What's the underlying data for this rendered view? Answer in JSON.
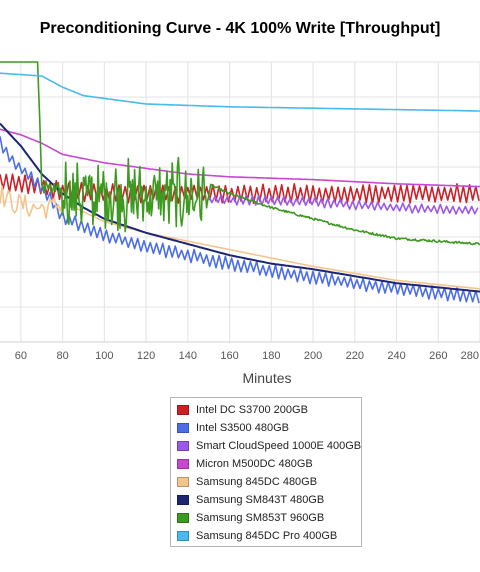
{
  "chart_data": {
    "type": "line",
    "title": "Preconditioning Curve - 4K 100% Write [Throughput]",
    "xlabel": "Minutes",
    "ylabel": "",
    "xlim": [
      50,
      280
    ],
    "x_ticks": [
      60,
      80,
      100,
      120,
      140,
      160,
      180,
      200,
      220,
      240,
      260,
      280
    ],
    "ylim": [
      0,
      100
    ],
    "grid": true,
    "legend_position": "bottom",
    "series": [
      {
        "name": "Intel DC S3700 200GB",
        "color": "#cc2027",
        "style": "noisy",
        "noise": 3.5,
        "points": [
          [
            50,
            57
          ],
          [
            60,
            57
          ],
          [
            65,
            56
          ],
          [
            70,
            55
          ],
          [
            80,
            54
          ],
          [
            100,
            53
          ],
          [
            150,
            53
          ],
          [
            280,
            53
          ]
        ]
      },
      {
        "name": "Intel S3500 480GB",
        "color": "#4b6ee8",
        "style": "noisy",
        "noise": 2.5,
        "points": [
          [
            50,
            72
          ],
          [
            55,
            65
          ],
          [
            60,
            62
          ],
          [
            70,
            55
          ],
          [
            80,
            45
          ],
          [
            100,
            38
          ],
          [
            120,
            34
          ],
          [
            140,
            31
          ],
          [
            160,
            28
          ],
          [
            200,
            23
          ],
          [
            240,
            19
          ],
          [
            280,
            16
          ]
        ]
      },
      {
        "name": "Smart CloudSpeed 1000E 400GB",
        "color": "#9b59e8",
        "style": "noisy",
        "noise": 1.8,
        "points": [
          [
            150,
            51
          ],
          [
            200,
            50
          ],
          [
            240,
            48
          ],
          [
            280,
            47
          ]
        ]
      },
      {
        "name": "Micron M500DC 480GB",
        "color": "#c847d1",
        "style": "smooth",
        "noise": 0,
        "points": [
          [
            50,
            76
          ],
          [
            60,
            74
          ],
          [
            70,
            71
          ],
          [
            80,
            67
          ],
          [
            100,
            64
          ],
          [
            120,
            62
          ],
          [
            140,
            60
          ],
          [
            160,
            59
          ],
          [
            200,
            58
          ],
          [
            240,
            56.5
          ],
          [
            280,
            55.5
          ]
        ]
      },
      {
        "name": "Samsung 845DC 480GB",
        "color": "#f4c48d",
        "style": "noisy-start",
        "noise": 4,
        "points": [
          [
            50,
            53
          ],
          [
            55,
            50
          ],
          [
            60,
            49
          ],
          [
            65,
            48
          ],
          [
            70,
            48
          ],
          [
            75,
            48
          ],
          [
            80,
            50
          ],
          [
            100,
            43
          ],
          [
            120,
            39
          ],
          [
            140,
            36
          ],
          [
            160,
            33
          ],
          [
            200,
            27
          ],
          [
            240,
            22
          ],
          [
            280,
            19
          ]
        ]
      },
      {
        "name": "Samsung SM843T 480GB",
        "color": "#1b2574",
        "style": "smooth",
        "noise": 0,
        "points": [
          [
            50,
            78
          ],
          [
            60,
            70
          ],
          [
            70,
            60
          ],
          [
            80,
            53
          ],
          [
            90,
            48
          ],
          [
            100,
            44
          ],
          [
            120,
            39
          ],
          [
            140,
            35
          ],
          [
            160,
            31
          ],
          [
            180,
            28
          ],
          [
            200,
            26
          ],
          [
            240,
            21
          ],
          [
            280,
            18
          ]
        ]
      },
      {
        "name": "Samsung SM853T 960GB",
        "color": "#3d9a20",
        "style": "custom",
        "noise": 0,
        "points": [
          [
            50,
            100
          ],
          [
            68,
            100
          ],
          [
            69,
            80
          ],
          [
            70,
            56
          ],
          [
            75,
            54
          ],
          [
            85,
            53
          ],
          [
            95,
            52
          ],
          [
            120,
            52
          ],
          [
            150,
            52
          ],
          [
            151,
            56
          ],
          [
            160,
            53
          ],
          [
            180,
            48
          ],
          [
            200,
            44
          ],
          [
            220,
            40
          ],
          [
            240,
            37
          ],
          [
            260,
            36
          ],
          [
            280,
            35
          ]
        ]
      },
      {
        "name": "Samsung 845DC Pro 400GB",
        "color": "#4ab9ec",
        "style": "smooth",
        "noise": 0,
        "points": [
          [
            50,
            96
          ],
          [
            70,
            95
          ],
          [
            80,
            91
          ],
          [
            90,
            88
          ],
          [
            100,
            87
          ],
          [
            120,
            85
          ],
          [
            160,
            84
          ],
          [
            200,
            83.5
          ],
          [
            240,
            83
          ],
          [
            280,
            82.5
          ]
        ]
      }
    ]
  }
}
